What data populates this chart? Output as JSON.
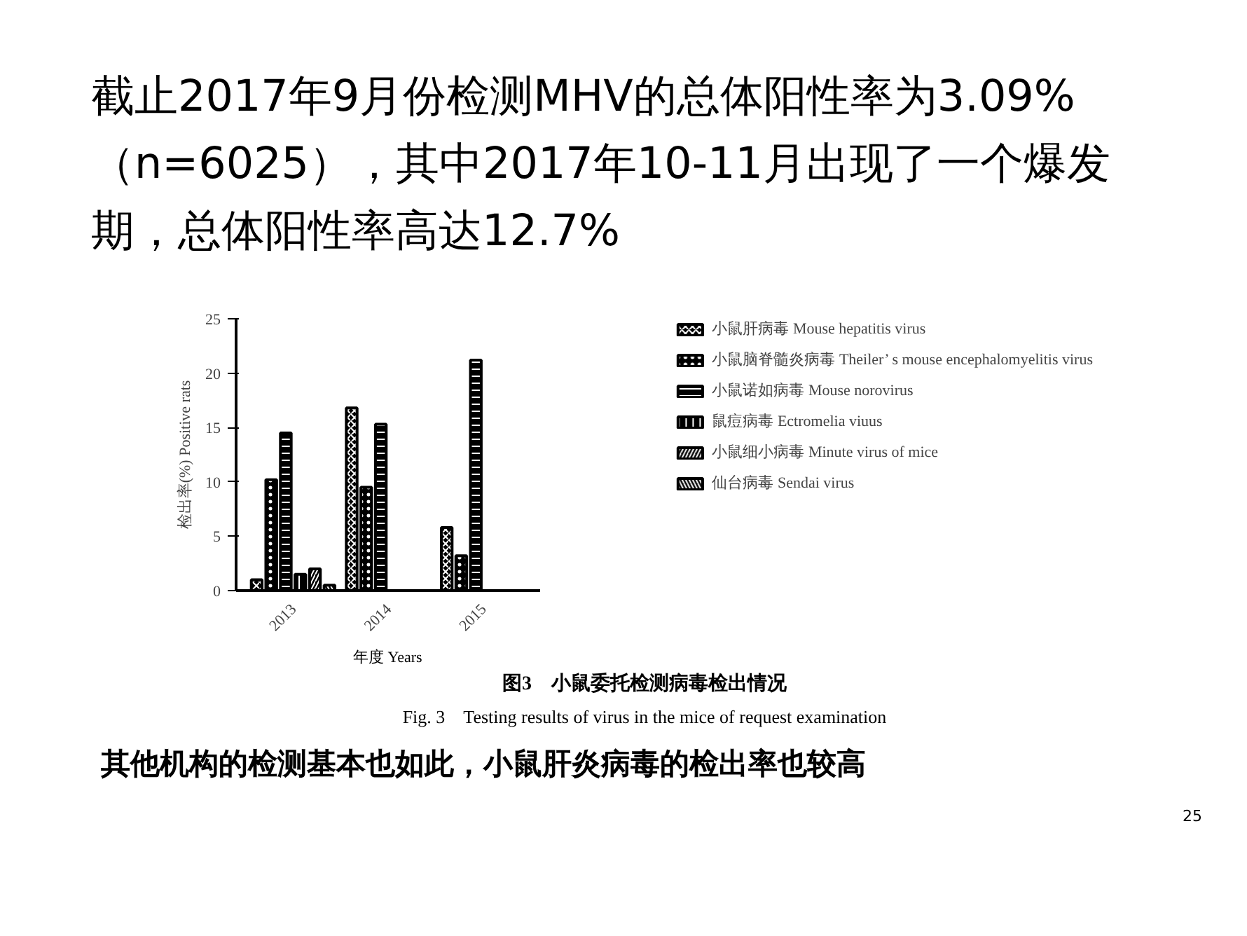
{
  "chart_data": {
    "type": "bar",
    "title": "截止2017年9月份检测MHV的总体阳性率为3.09%（n=6025），其中2017年10-11月出现了一个爆发期，总体阳性率高达12.7%",
    "xlabel": "年度 Years",
    "ylabel": "检出率(%) Positive rats",
    "categories": [
      "2013",
      "2014",
      "2015"
    ],
    "series": [
      {
        "name": "小鼠肝病毒 Mouse hepatitis virus",
        "color": "#000000",
        "values": [
          1.0,
          16.8,
          5.8
        ]
      },
      {
        "name": "小鼠脑脊髓炎病毒 Theiler’ s mouse encephalomyelitis virus",
        "color": "#000000",
        "values": [
          10.2,
          9.5,
          3.2
        ]
      },
      {
        "name": "小鼠诺如病毒 Mouse norovirus",
        "color": "#000000",
        "values": [
          14.5,
          15.3,
          21.2
        ]
      },
      {
        "name": "鼠痘病毒 Ectromelia viuus",
        "color": "#000000",
        "values": [
          1.5,
          null,
          null
        ]
      },
      {
        "name": "小鼠细小病毒 Minute virus of mice",
        "color": "#000000",
        "values": [
          2.0,
          null,
          null
        ]
      },
      {
        "name": "仙台病毒 Sendai virus",
        "color": "#000000",
        "values": [
          0.5,
          null,
          null
        ]
      }
    ],
    "ylim": [
      0,
      25
    ],
    "yticks": [
      0,
      5,
      10,
      15,
      20,
      25
    ],
    "grid": false,
    "legend": "right",
    "annotations": [
      "图3　小鼠委托检测病毒检出情况",
      "Fig. 3　Testing results of virus in the mice of request examination",
      "其他机构的检测基本也如此，小鼠肝炎病毒的检出率也较高",
      "25"
    ]
  }
}
